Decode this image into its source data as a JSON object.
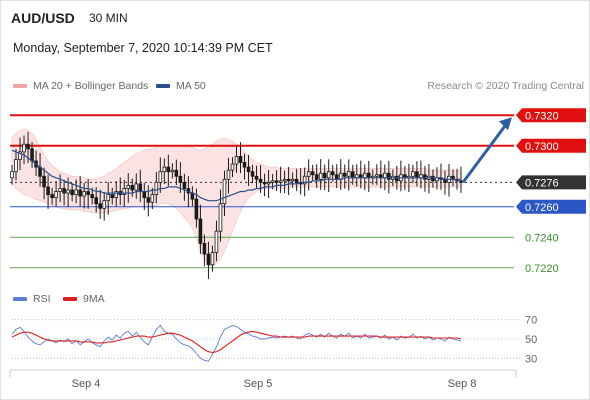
{
  "header": {
    "symbol": "AUD/USD",
    "timeframe": "30 MIN",
    "timestamp": "Monday, September 7, 2020 10:14:39 PM CET"
  },
  "legend": {
    "items": [
      {
        "label": "MA 20 + Bollinger Bands",
        "color": "#f4a3a3"
      },
      {
        "label": "MA 50",
        "color": "#2a4f8f"
      }
    ],
    "credit": "Research © 2020 Trading Central"
  },
  "rsi_legend": {
    "items": [
      {
        "label": "RSI",
        "color": "#5b7fd6"
      },
      {
        "label": "9MA",
        "color": "#e02020"
      }
    ]
  },
  "chart_data": [
    {
      "type": "candlestick",
      "title": "AUD/USD",
      "ylim": [
        0.7212,
        0.733
      ],
      "x_ticks": [
        "Sep 4",
        "Sep 5",
        "Sep 8"
      ],
      "levels": [
        {
          "value": 0.732,
          "label": "0.7320",
          "style": "resistance",
          "color": "#e01010"
        },
        {
          "value": 0.73,
          "label": "0.7300",
          "style": "resistance",
          "color": "#e01010"
        },
        {
          "value": 0.7276,
          "label": "0.7276",
          "style": "current",
          "color": "#333333"
        },
        {
          "value": 0.726,
          "label": "0.7260",
          "style": "pivot",
          "color": "#2a56c6"
        },
        {
          "value": 0.724,
          "label": "0.7240",
          "style": "support",
          "color": "#3a8f2a"
        },
        {
          "value": 0.722,
          "label": "0.7220",
          "style": "support",
          "color": "#3a8f2a"
        }
      ],
      "close_series": [
        0.7283,
        0.7291,
        0.7296,
        0.7301,
        0.7298,
        0.729,
        0.7286,
        0.728,
        0.7273,
        0.7268,
        0.7266,
        0.727,
        0.7272,
        0.7269,
        0.7271,
        0.7268,
        0.7271,
        0.7267,
        0.727,
        0.7268,
        0.7266,
        0.7262,
        0.7259,
        0.7264,
        0.7268,
        0.7266,
        0.727,
        0.7268,
        0.7272,
        0.7274,
        0.7271,
        0.7275,
        0.727,
        0.7266,
        0.7263,
        0.7268,
        0.7276,
        0.7283,
        0.7286,
        0.7283,
        0.7284,
        0.728,
        0.7276,
        0.7272,
        0.7269,
        0.7265,
        0.7252,
        0.7236,
        0.7229,
        0.7222,
        0.723,
        0.7244,
        0.7262,
        0.7278,
        0.7284,
        0.7288,
        0.7293,
        0.7289,
        0.7286,
        0.7283,
        0.728,
        0.7278,
        0.7276,
        0.7275,
        0.7276,
        0.7277,
        0.7276,
        0.7277,
        0.7278,
        0.7277,
        0.7278,
        0.7276,
        0.7275,
        0.728,
        0.7283,
        0.7281,
        0.7278,
        0.7282,
        0.7279,
        0.7283,
        0.7281,
        0.7278,
        0.7282,
        0.728,
        0.7283,
        0.7279,
        0.7281,
        0.7279,
        0.7282,
        0.7279,
        0.728,
        0.7281,
        0.7279,
        0.7282,
        0.7278,
        0.728,
        0.7277,
        0.7281,
        0.7279,
        0.728,
        0.7283,
        0.7279,
        0.7281,
        0.7278,
        0.728,
        0.7277,
        0.7279,
        0.7278,
        0.7276,
        0.728,
        0.7278,
        0.7277,
        0.7276
      ],
      "ma50": [
        0.7297,
        0.7296,
        0.7295,
        0.7294,
        0.7292,
        0.729,
        0.7288,
        0.7286,
        0.7284,
        0.7282,
        0.728,
        0.7279,
        0.7278,
        0.7277,
        0.7276,
        0.7275,
        0.7274,
        0.7273,
        0.7272,
        0.7272,
        0.7271,
        0.727,
        0.727,
        0.7269,
        0.7269,
        0.7269,
        0.7269,
        0.7269,
        0.7269,
        0.7269,
        0.7269,
        0.727,
        0.727,
        0.727,
        0.727,
        0.7271,
        0.7271,
        0.7272,
        0.7272,
        0.7273,
        0.7273,
        0.7273,
        0.7272,
        0.7271,
        0.727,
        0.7269,
        0.7268,
        0.7266,
        0.7265,
        0.7264,
        0.7264,
        0.7264,
        0.7265,
        0.7266,
        0.7267,
        0.7268,
        0.7269,
        0.727,
        0.727,
        0.7271,
        0.7271,
        0.7272,
        0.7272,
        0.7273,
        0.7273,
        0.7273,
        0.7274,
        0.7274,
        0.7274,
        0.7275,
        0.7275,
        0.7275,
        0.7276,
        0.7276,
        0.7276,
        0.7277,
        0.7277,
        0.7277,
        0.7278,
        0.7278,
        0.7278,
        0.7278,
        0.7278,
        0.7279,
        0.7279,
        0.7279,
        0.7279,
        0.7279,
        0.7279,
        0.7279,
        0.7279,
        0.7279,
        0.7279,
        0.7279,
        0.7279,
        0.7279,
        0.7279,
        0.7279,
        0.7279,
        0.7279,
        0.7279,
        0.7279,
        0.7279,
        0.7279,
        0.7279,
        0.7279,
        0.7279,
        0.7279,
        0.7278,
        0.7278,
        0.7278,
        0.7278,
        0.7278
      ],
      "bb_upper": [
        0.7305,
        0.7308,
        0.731,
        0.7311,
        0.731,
        0.7308,
        0.7304,
        0.7299,
        0.7294,
        0.729,
        0.7287,
        0.7285,
        0.7283,
        0.7282,
        0.7281,
        0.728,
        0.728,
        0.7279,
        0.7279,
        0.7278,
        0.7278,
        0.7278,
        0.7279,
        0.728,
        0.7282,
        0.7283,
        0.7285,
        0.7287,
        0.7289,
        0.7291,
        0.7293,
        0.7295,
        0.7296,
        0.7297,
        0.7298,
        0.7298,
        0.7299,
        0.73,
        0.73,
        0.73,
        0.73,
        0.73,
        0.73,
        0.73,
        0.73,
        0.7299,
        0.7298,
        0.7297,
        0.7298,
        0.73,
        0.7301,
        0.7303,
        0.7304,
        0.7305,
        0.7304,
        0.7303,
        0.7301,
        0.7299,
        0.7296,
        0.7293,
        0.7291,
        0.7289,
        0.7288,
        0.7287,
        0.7286,
        0.7286,
        0.7286,
        0.7285,
        0.7285,
        0.7285,
        0.7285,
        0.7285,
        0.7285,
        0.7285,
        0.7285,
        0.7285,
        0.7285,
        0.7285,
        0.7285,
        0.7285,
        0.7285,
        0.7285,
        0.7285,
        0.7285,
        0.7285,
        0.7285,
        0.7285,
        0.7285,
        0.7285,
        0.7285,
        0.7285,
        0.7285,
        0.7285,
        0.7285,
        0.7285,
        0.7285,
        0.7285,
        0.7285,
        0.7285,
        0.7285,
        0.7285,
        0.7285,
        0.7285,
        0.7285,
        0.7284,
        0.7284,
        0.7284,
        0.7284,
        0.7284,
        0.7284,
        0.7284,
        0.7284,
        0.7284
      ],
      "bb_lower": [
        0.7275,
        0.7272,
        0.727,
        0.7268,
        0.7267,
        0.7266,
        0.7265,
        0.7264,
        0.7263,
        0.7262,
        0.7261,
        0.726,
        0.7259,
        0.7259,
        0.7258,
        0.7258,
        0.7258,
        0.7258,
        0.7257,
        0.7257,
        0.7256,
        0.7256,
        0.7256,
        0.7256,
        0.7257,
        0.7257,
        0.7258,
        0.7258,
        0.7259,
        0.7259,
        0.726,
        0.726,
        0.726,
        0.726,
        0.726,
        0.726,
        0.7261,
        0.7262,
        0.7262,
        0.7262,
        0.7261,
        0.7259,
        0.7256,
        0.7253,
        0.725,
        0.7246,
        0.724,
        0.7232,
        0.7226,
        0.7222,
        0.7221,
        0.7223,
        0.7226,
        0.7231,
        0.7237,
        0.7244,
        0.7251,
        0.7257,
        0.7262,
        0.7266,
        0.7268,
        0.727,
        0.7271,
        0.7272,
        0.7272,
        0.7272,
        0.7272,
        0.7272,
        0.7272,
        0.7272,
        0.7273,
        0.7273,
        0.7273,
        0.7273,
        0.7273,
        0.7273,
        0.7273,
        0.7273,
        0.7273,
        0.7273,
        0.7273,
        0.7273,
        0.7273,
        0.7273,
        0.7273,
        0.7273,
        0.7273,
        0.7273,
        0.7273,
        0.7273,
        0.7273,
        0.7273,
        0.7273,
        0.7273,
        0.7273,
        0.7273,
        0.7273,
        0.7273,
        0.7273,
        0.7273,
        0.7273,
        0.7273,
        0.7273,
        0.7273,
        0.7273,
        0.7273,
        0.7273,
        0.7273,
        0.7273,
        0.7273,
        0.7273,
        0.7273,
        0.7273
      ],
      "forecast_arrow": {
        "from": 0.7276,
        "to": 0.732
      }
    },
    {
      "type": "line",
      "title": "RSI",
      "ylim": [
        20,
        80
      ],
      "y_ticks": [
        70,
        50,
        30
      ],
      "series": [
        {
          "name": "RSI",
          "color": "#5b7fd6",
          "values": [
            55,
            60,
            62,
            58,
            52,
            48,
            45,
            44,
            47,
            50,
            48,
            46,
            49,
            47,
            50,
            45,
            48,
            44,
            47,
            50,
            46,
            44,
            42,
            48,
            52,
            49,
            54,
            51,
            56,
            58,
            53,
            57,
            52,
            47,
            44,
            52,
            60,
            64,
            58,
            56,
            55,
            50,
            46,
            44,
            43,
            40,
            35,
            30,
            28,
            27,
            34,
            42,
            52,
            60,
            62,
            64,
            63,
            60,
            57,
            55,
            53,
            52,
            50,
            50,
            51,
            52,
            51,
            52,
            53,
            52,
            53,
            51,
            50,
            54,
            56,
            54,
            52,
            55,
            52,
            56,
            53,
            51,
            55,
            53,
            56,
            51,
            53,
            51,
            55,
            51,
            52,
            53,
            51,
            54,
            50,
            52,
            49,
            53,
            51,
            52,
            55,
            51,
            53,
            50,
            52,
            49,
            51,
            50,
            48,
            52,
            50,
            49,
            48
          ]
        },
        {
          "name": "9MA",
          "color": "#e02020",
          "values": [
            52,
            54,
            56,
            57,
            57,
            56,
            54,
            52,
            50,
            49,
            48,
            48,
            48,
            48,
            48,
            48,
            48,
            47,
            47,
            47,
            47,
            46,
            46,
            46,
            47,
            47,
            48,
            49,
            50,
            51,
            52,
            53,
            53,
            53,
            52,
            52,
            53,
            54,
            55,
            56,
            56,
            55,
            54,
            52,
            50,
            48,
            45,
            42,
            39,
            37,
            36,
            37,
            39,
            42,
            45,
            48,
            51,
            54,
            56,
            57,
            58,
            57,
            56,
            55,
            54,
            53,
            53,
            52,
            52,
            52,
            52,
            52,
            52,
            52,
            53,
            53,
            53,
            53,
            53,
            53,
            53,
            53,
            53,
            53,
            53,
            53,
            53,
            53,
            53,
            53,
            53,
            53,
            52,
            52,
            52,
            52,
            52,
            52,
            52,
            52,
            52,
            52,
            52,
            52,
            52,
            51,
            51,
            51,
            51,
            51,
            51,
            51,
            50
          ]
        }
      ]
    }
  ],
  "time_axis": [
    "Sep 4",
    "Sep 5",
    "Sep 8"
  ]
}
